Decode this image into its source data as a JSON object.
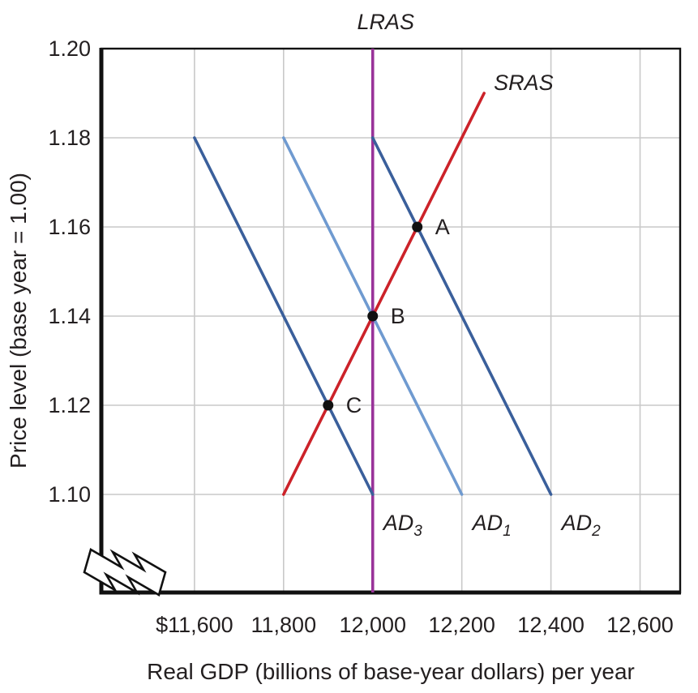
{
  "chart_data": {
    "type": "line",
    "title": "",
    "xlabel": "Real GDP (billions of base-year dollars) per year",
    "ylabel": "Price level (base year = 1.00)",
    "x_domain": [
      11391,
      12690
    ],
    "y_domain": [
      1.078,
      1.2
    ],
    "grid": true,
    "axis_break": true,
    "legend": "none",
    "colors": {
      "grid": "#c9c9c9",
      "axis": "#111111",
      "text": "#231f20",
      "point": "#111111",
      "lras": "#993399",
      "sras": "#cc2229",
      "ad_dark": "#3a5f9b",
      "ad_light": "#6f9ad0"
    },
    "x_ticks": [
      {
        "value": 11600,
        "label": "$11,600"
      },
      {
        "value": 11800,
        "label": "11,800"
      },
      {
        "value": 12000,
        "label": "12,000"
      },
      {
        "value": 12200,
        "label": "12,200"
      },
      {
        "value": 12400,
        "label": "12,400"
      },
      {
        "value": 12600,
        "label": "12,600"
      }
    ],
    "y_ticks": [
      {
        "value": 1.2,
        "label": "1.20"
      },
      {
        "value": 1.18,
        "label": "1.18"
      },
      {
        "value": 1.16,
        "label": "1.16"
      },
      {
        "value": 1.14,
        "label": "1.14"
      },
      {
        "value": 1.12,
        "label": "1.12"
      },
      {
        "value": 1.1,
        "label": "1.10"
      }
    ],
    "series": [
      {
        "name": "LRAS",
        "kind": "vertical",
        "x": 12000,
        "color_key": "lras",
        "label": {
          "text": "LRAS",
          "sub": ""
        },
        "label_pos": "above-top"
      },
      {
        "name": "AD3",
        "kind": "segment",
        "points": [
          [
            11600,
            1.18
          ],
          [
            12000,
            1.1
          ]
        ],
        "color_key": "ad_dark",
        "label": {
          "text": "AD",
          "sub": "3"
        },
        "label_pos": "below-end"
      },
      {
        "name": "AD1",
        "kind": "segment",
        "points": [
          [
            11800,
            1.18
          ],
          [
            12200,
            1.1
          ]
        ],
        "color_key": "ad_light",
        "label": {
          "text": "AD",
          "sub": "1"
        },
        "label_pos": "below-end"
      },
      {
        "name": "AD2",
        "kind": "segment",
        "points": [
          [
            12000,
            1.18
          ],
          [
            12400,
            1.1
          ]
        ],
        "color_key": "ad_dark",
        "label": {
          "text": "AD",
          "sub": "2"
        },
        "label_pos": "below-end"
      },
      {
        "name": "SRAS",
        "kind": "segment",
        "points": [
          [
            11800,
            1.1
          ],
          [
            12250,
            1.19
          ]
        ],
        "color_key": "sras",
        "label": {
          "text": "SRAS",
          "sub": ""
        },
        "label_pos": "right-of-end"
      }
    ],
    "points": [
      {
        "label": "A",
        "x": 12100,
        "y": 1.16
      },
      {
        "label": "B",
        "x": 12000,
        "y": 1.14
      },
      {
        "label": "C",
        "x": 11900,
        "y": 1.12
      }
    ]
  }
}
